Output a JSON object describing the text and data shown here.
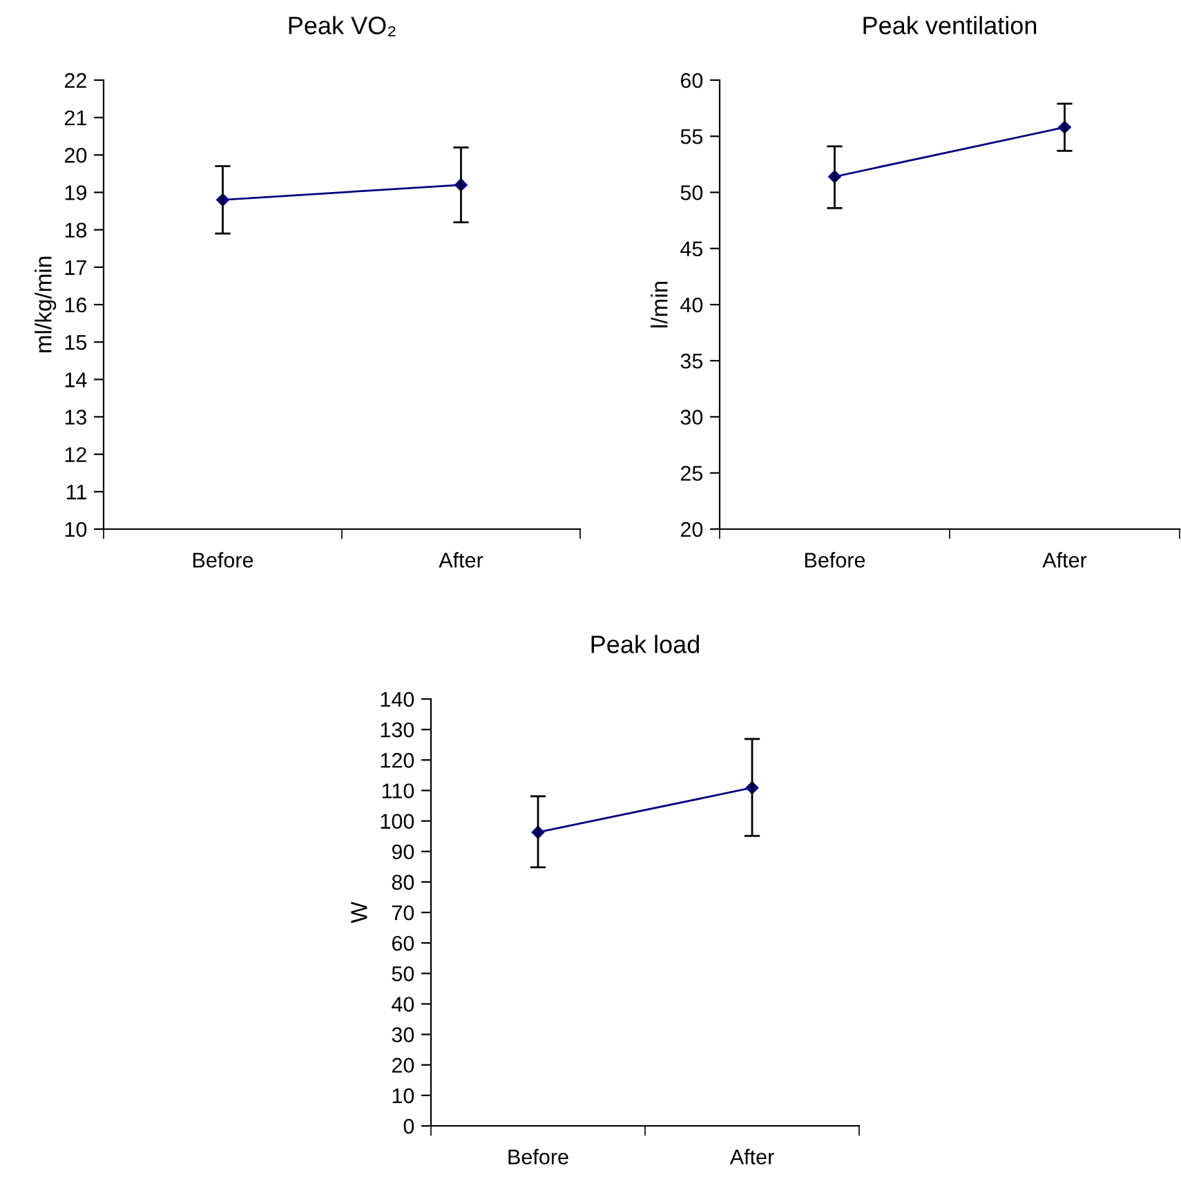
{
  "chart_data": [
    {
      "type": "line",
      "title": "Peak VO₂",
      "ylabel": "ml/kg/min",
      "categories": [
        "Before",
        "After"
      ],
      "values": [
        18.8,
        19.2
      ],
      "errors": [
        [
          17.9,
          19.7
        ],
        [
          18.2,
          20.2
        ]
      ],
      "color": "#000080",
      "marker": "diamond",
      "ylim": [
        10,
        22
      ],
      "yticks": [
        10,
        11,
        12,
        13,
        14,
        15,
        16,
        17,
        18,
        19,
        20,
        21,
        22
      ],
      "grid": false,
      "legend": false
    },
    {
      "type": "line",
      "title": "Peak ventilation",
      "ylabel": "l/min",
      "categories": [
        "Before",
        "After"
      ],
      "values": [
        51.4,
        55.8
      ],
      "errors": [
        [
          48.6,
          54.1
        ],
        [
          53.7,
          57.9
        ]
      ],
      "color": "#000080",
      "marker": "diamond",
      "ylim": [
        20,
        60
      ],
      "yticks": [
        20,
        25,
        30,
        35,
        40,
        45,
        50,
        55,
        60
      ],
      "grid": false,
      "legend": false
    },
    {
      "type": "line",
      "title": "Peak load",
      "ylabel": "W",
      "categories": [
        "Before",
        "After"
      ],
      "values": [
        96.3,
        110.9
      ],
      "errors": [
        [
          84.8,
          108.1
        ],
        [
          95.1,
          126.9
        ]
      ],
      "color": "#000080",
      "marker": "diamond",
      "ylim": [
        0,
        140
      ],
      "yticks": [
        0,
        10,
        20,
        30,
        40,
        50,
        60,
        70,
        80,
        90,
        100,
        110,
        120,
        130,
        140
      ],
      "grid": false,
      "legend": false
    }
  ]
}
